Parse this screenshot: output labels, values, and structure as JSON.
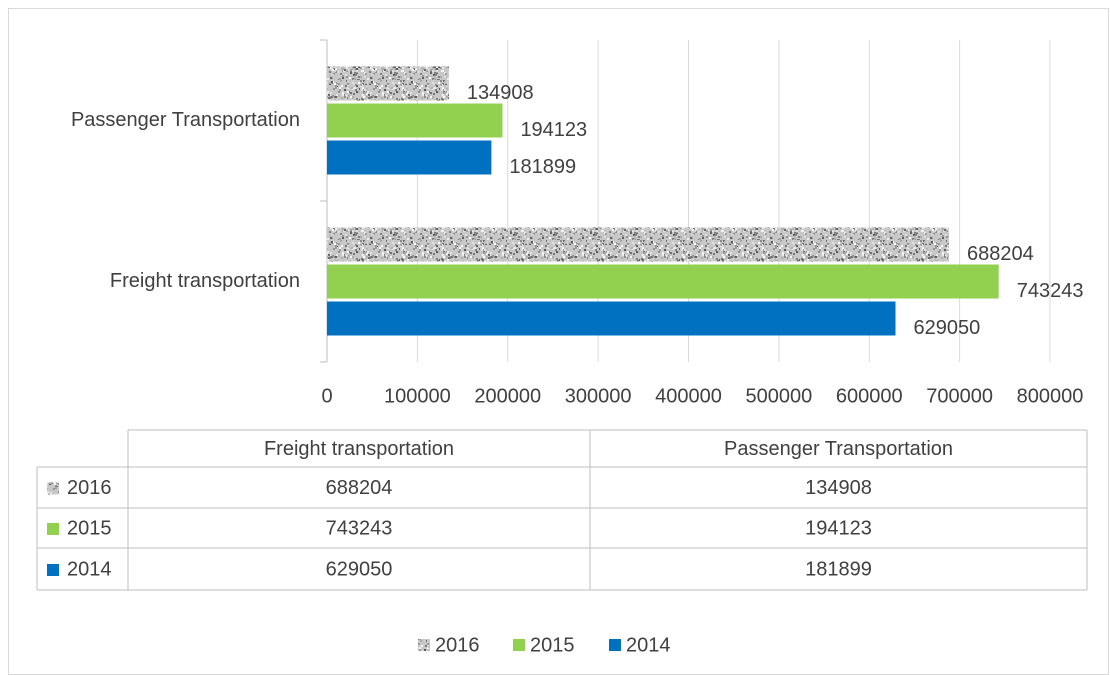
{
  "chart_data": {
    "type": "bar",
    "orientation": "horizontal",
    "categories": [
      "Freight transportation",
      "Passenger Transportation"
    ],
    "series": [
      {
        "name": "2016",
        "color": "#a6a6a6",
        "pattern": "speckled",
        "values": [
          688204,
          134908
        ]
      },
      {
        "name": "2015",
        "color": "#92d050",
        "values": [
          743243,
          194123
        ]
      },
      {
        "name": "2014",
        "color": "#0070c0",
        "values": [
          629050,
          181899
        ]
      }
    ],
    "xlim": [
      0,
      800000
    ],
    "xticks": [
      0,
      100000,
      200000,
      300000,
      400000,
      500000,
      600000,
      700000,
      800000
    ],
    "grid": true,
    "data_table": true,
    "legend": "bottom"
  }
}
